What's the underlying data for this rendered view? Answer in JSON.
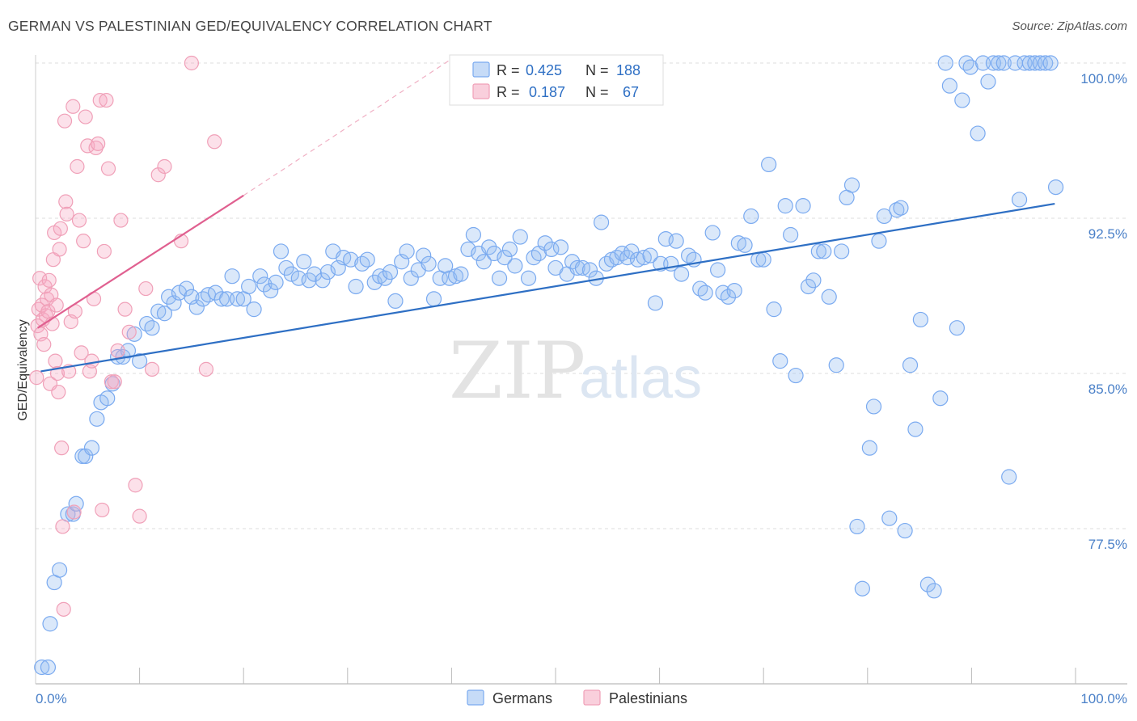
{
  "title": "GERMAN VS PALESTINIAN GED/EQUIVALENCY CORRELATION CHART",
  "source": "Source: ZipAtlas.com",
  "watermark": {
    "zip": "ZIP",
    "atlas": "atlas"
  },
  "stats": [
    {
      "r_label": "R =",
      "r_value": "0.425",
      "n_label": "N =",
      "n_value": "188",
      "color": "#7aaaf0"
    },
    {
      "r_label": "R =",
      "r_value": "0.187",
      "n_label": "N =",
      "n_value": "67",
      "color": "#f0a0b8"
    }
  ],
  "legend": [
    {
      "label": "Germans",
      "color": "#7aaaf0"
    },
    {
      "label": "Palestinians",
      "color": "#f0a0b8"
    }
  ],
  "chart_data": {
    "type": "scatter",
    "ylabel": "GED/Equivalency",
    "xlabel": "",
    "x_tick_labels": [
      "0.0%",
      "100.0%"
    ],
    "y_tick_labels": [
      "100.0%",
      "92.5%",
      "85.0%",
      "77.5%"
    ],
    "y_ticks": [
      100.0,
      92.5,
      85.0,
      77.5
    ],
    "xlim": [
      0,
      100
    ],
    "ylim": [
      70.5,
      100.7
    ],
    "grid": true,
    "series": [
      {
        "name": "Germans",
        "color": "#7aaaf0",
        "line_color": "#2e6fc4",
        "trend": {
          "x0": 0.5,
          "y0": 85.1,
          "x1": 98.0,
          "y1": 93.2
        },
        "points": [
          [
            0.6,
            70.8
          ],
          [
            1.2,
            70.8
          ],
          [
            1.4,
            72.9
          ],
          [
            1.8,
            74.9
          ],
          [
            2.3,
            75.5
          ],
          [
            3.1,
            78.2
          ],
          [
            3.6,
            78.2
          ],
          [
            3.9,
            78.7
          ],
          [
            4.5,
            81.0
          ],
          [
            4.8,
            81.0
          ],
          [
            5.4,
            81.4
          ],
          [
            5.9,
            82.8
          ],
          [
            6.3,
            83.6
          ],
          [
            6.9,
            83.8
          ],
          [
            7.4,
            84.5
          ],
          [
            7.9,
            85.8
          ],
          [
            8.4,
            85.8
          ],
          [
            8.9,
            86.1
          ],
          [
            9.5,
            86.9
          ],
          [
            10.0,
            85.6
          ],
          [
            10.7,
            87.4
          ],
          [
            11.2,
            87.2
          ],
          [
            11.8,
            88.0
          ],
          [
            12.4,
            87.9
          ],
          [
            12.8,
            88.7
          ],
          [
            13.3,
            88.4
          ],
          [
            13.8,
            88.9
          ],
          [
            14.5,
            89.1
          ],
          [
            15.0,
            88.7
          ],
          [
            15.5,
            88.2
          ],
          [
            16.1,
            88.6
          ],
          [
            16.6,
            88.8
          ],
          [
            17.3,
            88.9
          ],
          [
            17.9,
            88.6
          ],
          [
            18.4,
            88.6
          ],
          [
            18.9,
            89.7
          ],
          [
            19.4,
            88.6
          ],
          [
            20.0,
            88.6
          ],
          [
            20.5,
            89.2
          ],
          [
            21.0,
            88.1
          ],
          [
            21.6,
            89.7
          ],
          [
            22.0,
            89.3
          ],
          [
            22.6,
            89.0
          ],
          [
            23.1,
            89.4
          ],
          [
            23.6,
            90.9
          ],
          [
            24.1,
            90.1
          ],
          [
            24.6,
            89.8
          ],
          [
            25.3,
            89.6
          ],
          [
            25.8,
            90.4
          ],
          [
            26.3,
            89.5
          ],
          [
            26.8,
            89.8
          ],
          [
            27.6,
            89.5
          ],
          [
            28.1,
            89.9
          ],
          [
            28.6,
            90.9
          ],
          [
            29.1,
            90.1
          ],
          [
            29.6,
            90.6
          ],
          [
            30.3,
            90.5
          ],
          [
            30.8,
            89.2
          ],
          [
            31.4,
            90.3
          ],
          [
            31.9,
            90.5
          ],
          [
            32.6,
            89.4
          ],
          [
            33.1,
            89.7
          ],
          [
            33.6,
            89.6
          ],
          [
            34.1,
            89.9
          ],
          [
            34.6,
            88.5
          ],
          [
            35.2,
            90.4
          ],
          [
            35.7,
            90.9
          ],
          [
            36.1,
            89.6
          ],
          [
            36.8,
            90.0
          ],
          [
            37.3,
            90.7
          ],
          [
            37.8,
            90.3
          ],
          [
            38.3,
            88.6
          ],
          [
            38.9,
            89.6
          ],
          [
            39.4,
            90.2
          ],
          [
            39.8,
            89.6
          ],
          [
            40.4,
            89.7
          ],
          [
            40.9,
            89.8
          ],
          [
            41.6,
            91.0
          ],
          [
            42.1,
            91.7
          ],
          [
            42.6,
            90.8
          ],
          [
            43.1,
            90.4
          ],
          [
            43.6,
            91.1
          ],
          [
            44.1,
            90.8
          ],
          [
            44.6,
            89.6
          ],
          [
            45.1,
            90.6
          ],
          [
            45.6,
            91.0
          ],
          [
            46.1,
            90.2
          ],
          [
            46.6,
            91.6
          ],
          [
            47.4,
            89.6
          ],
          [
            47.9,
            90.6
          ],
          [
            48.4,
            90.8
          ],
          [
            49.0,
            91.3
          ],
          [
            49.6,
            91.0
          ],
          [
            50.0,
            90.1
          ],
          [
            50.5,
            91.1
          ],
          [
            51.1,
            89.8
          ],
          [
            51.6,
            90.4
          ],
          [
            52.1,
            90.1
          ],
          [
            52.6,
            90.1
          ],
          [
            53.3,
            90.0
          ],
          [
            53.9,
            89.6
          ],
          [
            54.4,
            92.3
          ],
          [
            54.9,
            90.3
          ],
          [
            55.4,
            90.5
          ],
          [
            55.9,
            90.6
          ],
          [
            56.4,
            90.8
          ],
          [
            56.9,
            90.6
          ],
          [
            57.3,
            90.9
          ],
          [
            57.9,
            90.5
          ],
          [
            58.5,
            90.6
          ],
          [
            59.1,
            90.7
          ],
          [
            59.6,
            88.4
          ],
          [
            60.1,
            90.3
          ],
          [
            60.6,
            91.5
          ],
          [
            61.1,
            90.3
          ],
          [
            61.6,
            91.4
          ],
          [
            62.1,
            89.8
          ],
          [
            62.8,
            90.7
          ],
          [
            63.3,
            90.5
          ],
          [
            63.9,
            89.1
          ],
          [
            64.4,
            88.9
          ],
          [
            65.1,
            91.8
          ],
          [
            65.6,
            90.0
          ],
          [
            66.1,
            88.9
          ],
          [
            66.6,
            88.7
          ],
          [
            67.2,
            89.0
          ],
          [
            67.6,
            91.3
          ],
          [
            68.2,
            91.2
          ],
          [
            68.8,
            92.6
          ],
          [
            69.5,
            90.5
          ],
          [
            70.0,
            90.5
          ],
          [
            70.5,
            95.1
          ],
          [
            71.0,
            88.1
          ],
          [
            71.6,
            85.6
          ],
          [
            72.1,
            93.1
          ],
          [
            72.6,
            91.7
          ],
          [
            73.1,
            84.9
          ],
          [
            73.8,
            93.1
          ],
          [
            74.3,
            89.2
          ],
          [
            74.8,
            89.5
          ],
          [
            75.3,
            90.9
          ],
          [
            75.8,
            90.9
          ],
          [
            76.3,
            88.7
          ],
          [
            77.0,
            85.4
          ],
          [
            77.5,
            90.9
          ],
          [
            78.0,
            93.5
          ],
          [
            78.5,
            94.1
          ],
          [
            79.0,
            77.6
          ],
          [
            79.5,
            74.6
          ],
          [
            80.2,
            81.4
          ],
          [
            80.6,
            83.4
          ],
          [
            81.1,
            91.4
          ],
          [
            81.6,
            92.6
          ],
          [
            82.1,
            78.0
          ],
          [
            82.8,
            92.9
          ],
          [
            83.2,
            93.0
          ],
          [
            83.6,
            77.4
          ],
          [
            84.1,
            85.4
          ],
          [
            84.6,
            82.3
          ],
          [
            85.1,
            87.6
          ],
          [
            85.8,
            74.8
          ],
          [
            86.4,
            74.5
          ],
          [
            87.0,
            83.8
          ],
          [
            87.5,
            100.0
          ],
          [
            87.9,
            98.9
          ],
          [
            88.6,
            87.2
          ],
          [
            89.1,
            98.2
          ],
          [
            89.5,
            100.0
          ],
          [
            89.9,
            99.8
          ],
          [
            90.6,
            96.6
          ],
          [
            91.1,
            100.0
          ],
          [
            91.6,
            99.1
          ],
          [
            92.1,
            100.0
          ],
          [
            92.6,
            100.0
          ],
          [
            93.1,
            100.0
          ],
          [
            93.6,
            80.0
          ],
          [
            94.2,
            100.0
          ],
          [
            94.6,
            93.4
          ],
          [
            95.1,
            100.0
          ],
          [
            95.6,
            100.0
          ],
          [
            96.1,
            100.0
          ],
          [
            96.6,
            100.0
          ],
          [
            97.1,
            100.0
          ],
          [
            97.6,
            100.0
          ],
          [
            98.1,
            94.0
          ]
        ]
      },
      {
        "name": "Palestinians",
        "color": "#f0a0b8",
        "line_color": "#e06090",
        "trend": {
          "x0": 0.2,
          "y0": 87.2,
          "x1": 20.0,
          "y1": 93.6
        },
        "trend_ext": {
          "x0": 20.0,
          "y0": 93.6,
          "x1": 40.0,
          "y1": 100.2
        },
        "points": [
          [
            0.1,
            84.8
          ],
          [
            0.2,
            87.3
          ],
          [
            0.3,
            88.1
          ],
          [
            0.4,
            89.6
          ],
          [
            0.5,
            86.9
          ],
          [
            0.6,
            88.3
          ],
          [
            0.7,
            87.6
          ],
          [
            0.8,
            86.4
          ],
          [
            0.9,
            89.2
          ],
          [
            1.0,
            87.8
          ],
          [
            1.1,
            88.6
          ],
          [
            1.2,
            88.0
          ],
          [
            1.3,
            89.5
          ],
          [
            1.4,
            84.5
          ],
          [
            1.5,
            88.8
          ],
          [
            1.6,
            87.4
          ],
          [
            1.7,
            90.5
          ],
          [
            1.8,
            91.8
          ],
          [
            1.9,
            85.6
          ],
          [
            2.0,
            88.3
          ],
          [
            2.1,
            85.0
          ],
          [
            2.2,
            84.1
          ],
          [
            2.3,
            91.0
          ],
          [
            2.4,
            92.0
          ],
          [
            2.5,
            81.4
          ],
          [
            2.6,
            77.6
          ],
          [
            2.7,
            73.6
          ],
          [
            2.8,
            97.2
          ],
          [
            2.9,
            93.3
          ],
          [
            3.0,
            92.7
          ],
          [
            3.2,
            85.1
          ],
          [
            3.4,
            87.5
          ],
          [
            3.6,
            97.9
          ],
          [
            3.8,
            88.0
          ],
          [
            4.0,
            95.0
          ],
          [
            4.2,
            92.4
          ],
          [
            4.4,
            86.0
          ],
          [
            4.6,
            91.4
          ],
          [
            4.8,
            97.4
          ],
          [
            5.0,
            96.0
          ],
          [
            5.2,
            85.1
          ],
          [
            5.4,
            85.6
          ],
          [
            5.6,
            88.6
          ],
          [
            5.8,
            95.9
          ],
          [
            6.0,
            96.1
          ],
          [
            6.2,
            98.2
          ],
          [
            6.4,
            78.4
          ],
          [
            6.6,
            90.9
          ],
          [
            6.8,
            98.2
          ],
          [
            7.0,
            94.9
          ],
          [
            7.3,
            84.6
          ],
          [
            7.6,
            84.6
          ],
          [
            7.9,
            86.1
          ],
          [
            8.2,
            92.4
          ],
          [
            8.6,
            88.1
          ],
          [
            9.0,
            87.0
          ],
          [
            9.6,
            79.6
          ],
          [
            10.0,
            78.1
          ],
          [
            10.6,
            89.1
          ],
          [
            11.2,
            85.2
          ],
          [
            11.8,
            94.6
          ],
          [
            12.4,
            95.0
          ],
          [
            14.0,
            91.4
          ],
          [
            15.0,
            100.0
          ],
          [
            16.4,
            85.2
          ],
          [
            17.2,
            96.2
          ],
          [
            3.7,
            78.3
          ]
        ]
      }
    ]
  }
}
